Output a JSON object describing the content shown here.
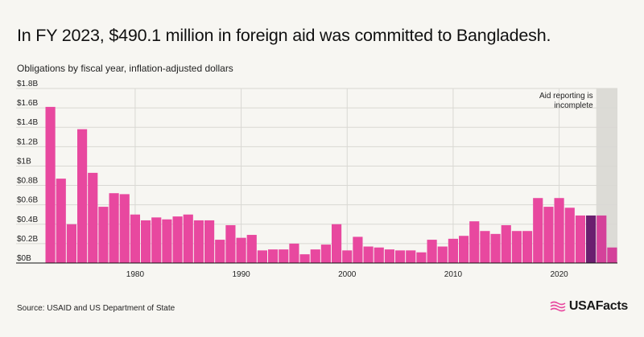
{
  "chart_data": {
    "type": "bar",
    "title": "In FY 2023, $490.1 million in foreign aid was committed to Bangladesh.",
    "subtitle": "Obligations by fiscal year, inflation-adjusted dollars",
    "xlabel": "",
    "ylabel": "",
    "ylim": [
      0,
      1.8
    ],
    "y_unit": "billions of dollars",
    "y_ticks": [
      0,
      0.2,
      0.4,
      0.6,
      0.8,
      1.0,
      1.2,
      1.4,
      1.6,
      1.8
    ],
    "y_tick_labels": [
      "$0B",
      "$0.2B",
      "$0.4B",
      "$0.6B",
      "$0.8B",
      "$1B",
      "$1.2B",
      "$1.4B",
      "$1.6B",
      "$1.8B"
    ],
    "x_ticks": [
      1980,
      1990,
      2000,
      2010,
      2020
    ],
    "categories": [
      1972,
      1973,
      1974,
      1975,
      1976,
      1977,
      1978,
      1979,
      1980,
      1981,
      1982,
      1983,
      1984,
      1985,
      1986,
      1987,
      1988,
      1989,
      1990,
      1991,
      1992,
      1993,
      1994,
      1995,
      1996,
      1997,
      1998,
      1999,
      2000,
      2001,
      2002,
      2003,
      2004,
      2005,
      2006,
      2007,
      2008,
      2009,
      2010,
      2011,
      2012,
      2013,
      2014,
      2015,
      2016,
      2017,
      2018,
      2019,
      2020,
      2021,
      2022,
      2023,
      2024,
      2025
    ],
    "values": [
      1.61,
      0.87,
      0.4,
      1.38,
      0.93,
      0.58,
      0.72,
      0.71,
      0.5,
      0.44,
      0.47,
      0.45,
      0.48,
      0.5,
      0.44,
      0.44,
      0.24,
      0.39,
      0.26,
      0.29,
      0.13,
      0.14,
      0.14,
      0.2,
      0.09,
      0.14,
      0.19,
      0.4,
      0.13,
      0.27,
      0.17,
      0.16,
      0.14,
      0.13,
      0.13,
      0.11,
      0.24,
      0.17,
      0.25,
      0.28,
      0.43,
      0.33,
      0.3,
      0.39,
      0.33,
      0.33,
      0.67,
      0.58,
      0.67,
      0.57,
      0.49,
      0.49,
      0.49,
      0.16
    ],
    "highlight_year": 2023,
    "incomplete_from_year": 2024,
    "annotation": "Aid reporting is incomplete",
    "colors": {
      "bar": "#e8489f",
      "highlight": "#6b1f6f",
      "incomplete_bar": "#d4419a",
      "incomplete_shade": "#dcdbd6",
      "grid": "#d9d8d3",
      "axis": "#111111"
    }
  },
  "footer": {
    "source": "Source: USAID and US Department of State",
    "brand": "USAFacts"
  }
}
